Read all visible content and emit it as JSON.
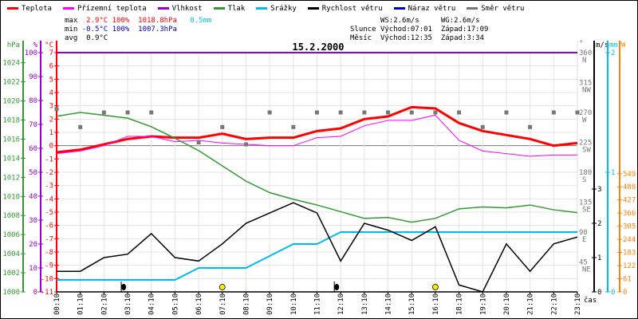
{
  "legend": [
    {
      "label": "Teplota",
      "color": "#ff0000"
    },
    {
      "label": "Přízemní teplota",
      "color": "#ff00ff"
    },
    {
      "label": "Vlhkost",
      "color": "#9900cc"
    },
    {
      "label": "Tlak",
      "color": "#339933"
    },
    {
      "label": "Srážky",
      "color": "#00bbee"
    },
    {
      "label": "Rychlost větru",
      "color": "#000000"
    },
    {
      "label": "Náraz větru",
      "color": "#0000cc"
    },
    {
      "label": "Směr větru",
      "color": "#777777"
    }
  ],
  "stats": {
    "max_label": "max",
    "max_temp": "2.9°C",
    "max_hum": "100%",
    "max_press": "1018.8hPa",
    "max_rain": "0.5mm",
    "min_label": "min",
    "min_temp": "-0.5°C",
    "min_hum": "100%",
    "min_press": "1007.3hPa",
    "avg_label": "avg",
    "avg_temp": "0.9°C",
    "ws": "WS:2.6m/s",
    "wg": "WG:2.6m/s",
    "sun_label": "Slunce",
    "sun_rise": "Východ:07:01",
    "sun_set": "Západ:17:09",
    "moon_label": "Měsíc",
    "moon_rise": "Východ:12:35",
    "moon_set": "Západ:3:34"
  },
  "chart_data": {
    "type": "line",
    "title": "15.2.2000",
    "xlabel": "čas",
    "x": [
      "00:10",
      "01:10",
      "02:10",
      "03:10",
      "04:10",
      "05:10",
      "06:10",
      "07:10",
      "08:10",
      "09:10",
      "10:10",
      "11:10",
      "12:10",
      "13:10",
      "14:10",
      "15:10",
      "16:10",
      "18:10",
      "19:10",
      "20:10",
      "21:10",
      "22:10",
      "23:10"
    ],
    "axes": {
      "pressure": {
        "unit": "hPa",
        "range": [
          1000,
          1024
        ],
        "ticks": [
          1000,
          1002,
          1004,
          1006,
          1008,
          1010,
          1012,
          1014,
          1016,
          1018,
          1020,
          1022,
          1024
        ]
      },
      "humidity": {
        "unit": "%",
        "range": [
          0,
          100
        ],
        "ticks": [
          0,
          10,
          20,
          30,
          40,
          50,
          60,
          70,
          80,
          90,
          100
        ]
      },
      "temperature": {
        "unit": "°C",
        "range": [
          -11,
          7
        ],
        "ticks": [
          -11,
          -10,
          -9,
          -8,
          -7,
          -6,
          -5,
          -4,
          -3,
          -2,
          -1,
          0,
          1,
          2,
          3,
          4,
          5,
          6,
          7
        ]
      },
      "direction": {
        "unit": "°",
        "range": [
          0,
          360
        ],
        "ticks": [
          [
            "360",
            "N"
          ],
          [
            "315",
            "NW"
          ],
          [
            "270",
            "W"
          ],
          [
            "225",
            "SW"
          ],
          [
            "180",
            "S"
          ],
          [
            "135",
            "SE"
          ],
          [
            "90",
            "E"
          ],
          [
            "45",
            "NE"
          ]
        ]
      },
      "wind": {
        "unit": "m/s",
        "range": [
          0,
          3.5
        ],
        "ticks": [
          0,
          1,
          2,
          3
        ]
      },
      "rain": {
        "unit": "mm",
        "range": [
          0,
          2
        ],
        "ticks": [
          0,
          1,
          2
        ]
      },
      "solar": {
        "unit": "W",
        "ticks": [
          0,
          61,
          122,
          183,
          244,
          305,
          366,
          427,
          488,
          549
        ]
      }
    },
    "series": [
      {
        "name": "Teplota",
        "axis": "temperature",
        "values": [
          -0.5,
          -0.3,
          0.1,
          0.5,
          0.7,
          0.6,
          0.6,
          0.9,
          0.5,
          0.6,
          0.6,
          1.1,
          1.3,
          2.0,
          2.2,
          2.9,
          2.8,
          1.7,
          1.1,
          0.8,
          0.5,
          0.0,
          0.2
        ]
      },
      {
        "name": "Přízemní teplota",
        "axis": "temperature",
        "values": [
          -0.6,
          -0.4,
          0.0,
          0.7,
          0.7,
          0.3,
          0.4,
          0.2,
          0.1,
          0.0,
          0.0,
          0.6,
          0.7,
          1.5,
          1.9,
          1.9,
          2.3,
          0.4,
          -0.4,
          -0.6,
          -0.8,
          -0.7,
          -0.7
        ]
      },
      {
        "name": "Vlhkost",
        "axis": "humidity",
        "values": [
          100,
          100,
          100,
          100,
          100,
          100,
          100,
          100,
          100,
          100,
          100,
          100,
          100,
          100,
          100,
          100,
          100,
          100,
          100,
          100,
          100,
          100,
          100
        ]
      },
      {
        "name": "Tlak",
        "axis": "pressure",
        "values": [
          1018.4,
          1018.8,
          1018.5,
          1018.2,
          1017.3,
          1016.1,
          1014.8,
          1013.2,
          1011.6,
          1010.4,
          1009.7,
          1009.1,
          1008.4,
          1007.7,
          1007.8,
          1007.3,
          1007.7,
          1008.7,
          1008.9,
          1008.8,
          1009.1,
          1008.6,
          1008.3
        ]
      },
      {
        "name": "Srážky",
        "axis": "rain",
        "values": [
          0.1,
          0.1,
          0.1,
          0.1,
          0.1,
          0.1,
          0.2,
          0.2,
          0.2,
          0.3,
          0.4,
          0.4,
          0.5,
          0.5,
          0.5,
          0.5,
          0.5,
          0.5,
          0.5,
          0.5,
          0.5,
          0.5,
          0.5
        ]
      },
      {
        "name": "Rychlost větru",
        "axis": "wind",
        "values": [
          0.6,
          0.6,
          1.0,
          1.1,
          1.7,
          1.0,
          0.9,
          1.4,
          2.0,
          2.3,
          2.6,
          2.3,
          0.9,
          2.0,
          1.8,
          1.5,
          1.9,
          0.2,
          0.0,
          1.4,
          0.6,
          1.4,
          1.6
        ]
      },
      {
        "name": "Směr větru",
        "axis": "direction",
        "values": [
          275,
          248,
          270,
          270,
          270,
          null,
          225,
          248,
          222,
          270,
          248,
          270,
          270,
          270,
          270,
          270,
          270,
          270,
          248,
          270,
          248,
          270,
          270
        ]
      }
    ],
    "weather_icons": [
      {
        "x": "03:10",
        "icon": "rain"
      },
      {
        "x": "07:10",
        "icon": "sun"
      },
      {
        "x": "12:10",
        "icon": "rain"
      },
      {
        "x": "16:10",
        "icon": "sun"
      }
    ],
    "grid": true
  }
}
